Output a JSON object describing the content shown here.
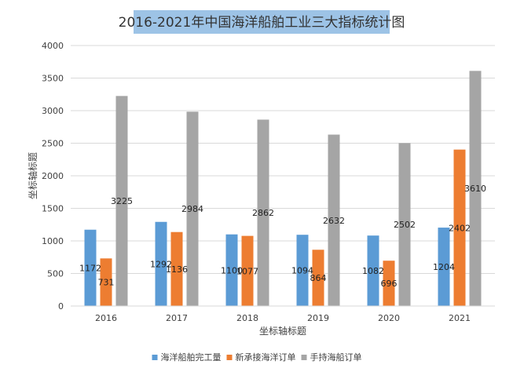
{
  "chart_data": {
    "type": "bar",
    "title": "2016-2021年中国海洋船舶工业三大指标统计图",
    "xlabel": "坐标轴标题",
    "ylabel": "坐标轴标题",
    "categories": [
      "2016",
      "2017",
      "2018",
      "2019",
      "2020",
      "2021"
    ],
    "ylim": [
      0,
      4000
    ],
    "yticks": [
      0,
      500,
      1000,
      1500,
      2000,
      2500,
      3000,
      3500,
      4000
    ],
    "grid": true,
    "legend_position": "bottom",
    "series": [
      {
        "name": "海洋船舶完工量",
        "color": "#5B9BD5",
        "values": [
          1172,
          1292,
          1100,
          1094,
          1082,
          1204
        ]
      },
      {
        "name": "新承接海洋订单",
        "color": "#ED7D31",
        "values": [
          731,
          1136,
          1077,
          864,
          696,
          2402
        ]
      },
      {
        "name": "手持海船订单",
        "color": "#A5A5A5",
        "values": [
          3225,
          2984,
          2862,
          2632,
          2502,
          3610
        ]
      }
    ],
    "title_background": "#9DC3E6"
  }
}
